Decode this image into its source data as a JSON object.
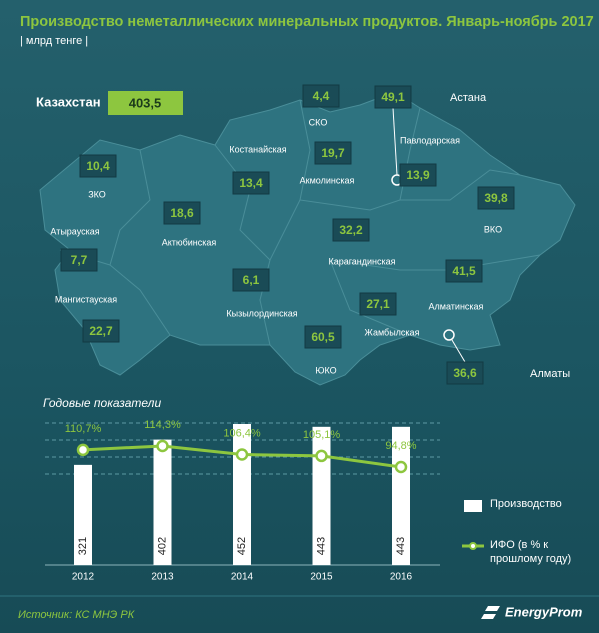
{
  "header": {
    "title": "Производство неметаллических минеральных продуктов. Январь-ноябрь 2017",
    "unit": "| млрд тенге |"
  },
  "map": {
    "total_label": "Казахстан",
    "total_value": "403,5",
    "regions": [
      {
        "name": "СКО",
        "value": "4,4"
      },
      {
        "name": "Астана",
        "value": "49,1"
      },
      {
        "name": "Костанайская",
        "value": "13,4"
      },
      {
        "name": "Акмолинская",
        "value": "19,7"
      },
      {
        "name": "Павлодарская",
        "value": "13,9"
      },
      {
        "name": "ЗКО",
        "value": "10,4"
      },
      {
        "name": "Актюбинская",
        "value": "18,6"
      },
      {
        "name": "Атырауская",
        "value": "7,7"
      },
      {
        "name": "ВКО",
        "value": "39,8"
      },
      {
        "name": "Карагандинская",
        "value": "32,2"
      },
      {
        "name": "Мангистауская",
        "value": "22,7"
      },
      {
        "name": "Кызылординская",
        "value": "6,1"
      },
      {
        "name": "Алматинская",
        "value": "41,5"
      },
      {
        "name": "Жамбылская",
        "value": "27,1"
      },
      {
        "name": "ЮКО",
        "value": "60,5"
      },
      {
        "name": "Алматы",
        "value": "36,6"
      }
    ]
  },
  "chart_data": {
    "type": "bar",
    "title": "Годовые показатели",
    "categories": [
      "2012",
      "2013",
      "2014",
      "2015",
      "2016"
    ],
    "series": [
      {
        "name": "Производство",
        "color": "#ffffff",
        "values": [
          321,
          402,
          452,
          443,
          443
        ]
      },
      {
        "name": "ИФО (в % к прошлому году)",
        "type": "line",
        "axis": "y2",
        "color": "#8dc63f",
        "values": [
          110.7,
          114.3,
          106.4,
          105.1,
          94.8
        ],
        "value_labels": [
          "110,7%",
          "114,3%",
          "106,4%",
          "105,1%",
          "94,8%"
        ]
      }
    ]
  },
  "footer": {
    "source": "Источник: КС МНЭ РК",
    "brand": "EnergyProm"
  }
}
